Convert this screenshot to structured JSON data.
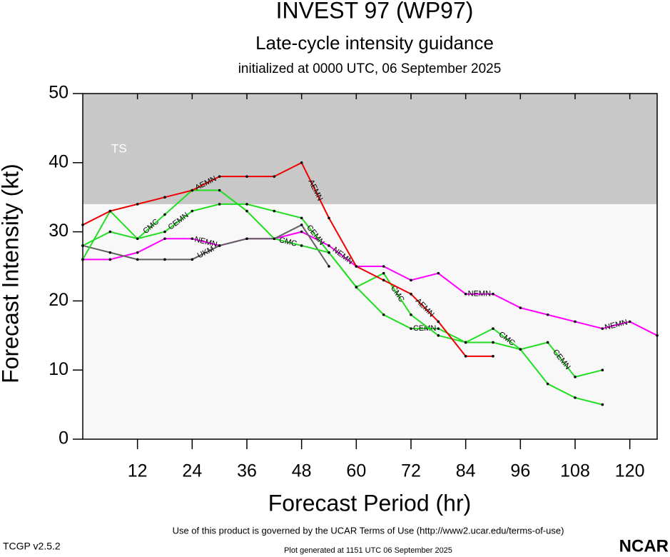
{
  "chart_data": {
    "type": "line",
    "title": "INVEST 97 (WP97)",
    "subtitle": "Late-cycle intensity guidance",
    "initialized": "initialized at 0000 UTC, 06 September 2025",
    "x_label": "Forecast Period (hr)",
    "y_label": "Forecast Intensity (kt)",
    "x": [
      0,
      6,
      12,
      18,
      24,
      30,
      36,
      42,
      48,
      54,
      60,
      66,
      72,
      78,
      84,
      90,
      96,
      102,
      108,
      114,
      120,
      126
    ],
    "xlim": [
      0,
      126
    ],
    "xticks": [
      12,
      24,
      36,
      48,
      60,
      72,
      84,
      96,
      108,
      120
    ],
    "ylim": [
      0,
      50
    ],
    "yticks": [
      0,
      10,
      20,
      30,
      40,
      50
    ],
    "shaded_bands": [
      {
        "label": "TS",
        "range": [
          34,
          50
        ],
        "color": "#c8c8c8"
      }
    ],
    "series": [
      {
        "name": "NEMN",
        "color": "#ff00ff",
        "values": [
          26,
          26,
          27,
          29,
          29,
          28,
          29,
          29,
          30,
          28,
          25,
          25,
          23,
          24,
          21,
          21,
          19,
          18,
          17,
          16,
          17,
          15
        ]
      },
      {
        "name": "UKM",
        "color": "#606060",
        "values": [
          28,
          27,
          26,
          26,
          26,
          28,
          29,
          29,
          31,
          25,
          null,
          null,
          null,
          null,
          null,
          null,
          null,
          null,
          null,
          null,
          null,
          null
        ]
      },
      {
        "name": "CEMN",
        "color": "#22dd22",
        "values": [
          28,
          30,
          29,
          30,
          33,
          34,
          34,
          33,
          32,
          27,
          22,
          18,
          16,
          16,
          14,
          14,
          13,
          14,
          9,
          10,
          null,
          null
        ]
      },
      {
        "name": "CMC",
        "color": "#22dd22",
        "values": [
          26,
          33,
          29,
          32.5,
          36,
          36,
          33,
          29,
          28,
          27,
          22,
          24,
          18,
          15,
          14,
          16,
          13,
          8,
          6,
          5,
          null,
          null
        ]
      },
      {
        "name": "AEMN",
        "color": "#ee0000",
        "values": [
          31,
          33,
          34,
          35,
          36,
          38,
          38,
          38,
          40,
          32,
          25,
          23,
          21,
          17,
          12,
          12,
          null,
          null,
          null,
          null,
          null,
          null
        ]
      }
    ]
  },
  "footer": {
    "terms": "Use of this product is governed by the UCAR Terms of Use (http://www2.ucar.edu/terms-of-use)",
    "version": "TCGP v2.5.2",
    "generated": "Plot generated at 1151 UTC   06 September 2025",
    "logo": "NCAR"
  }
}
